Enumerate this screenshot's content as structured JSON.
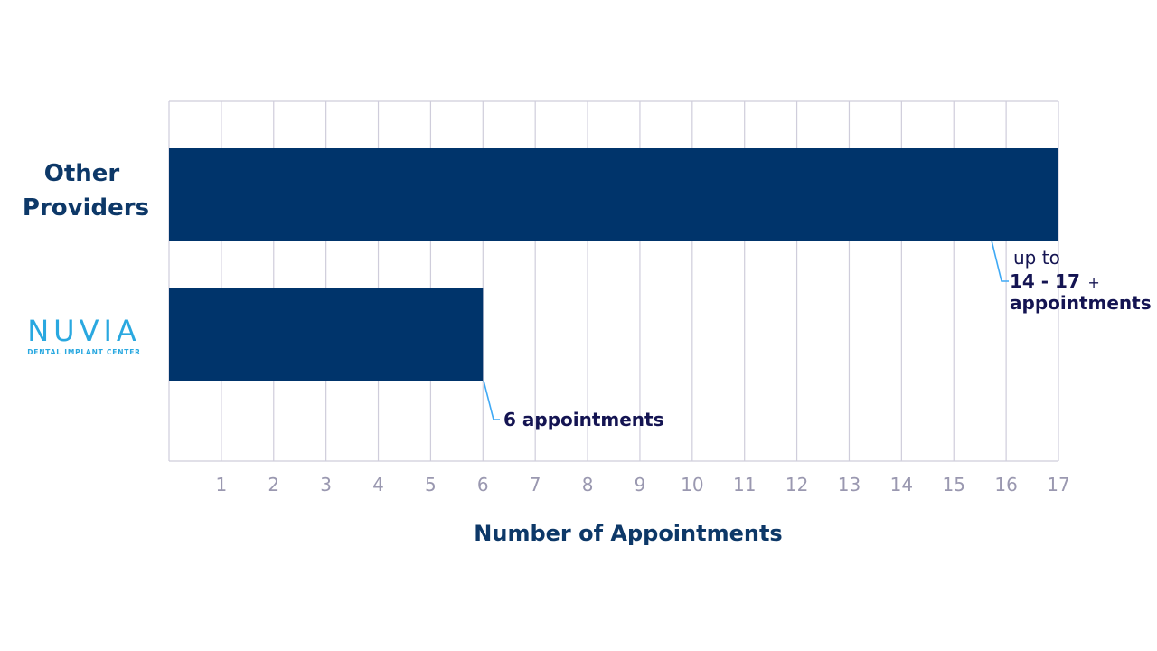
{
  "colors": {
    "bar": "#00346B",
    "grid": "#CFCDDB",
    "tick_text": "#9A98B0",
    "category_text": "#0D3868",
    "annotation_text": "#141452",
    "leader_line": "#3FA9F5",
    "logo": "#29A8E0"
  },
  "logo": {
    "name": "NUVIA",
    "tagline": "DENTAL IMPLANT CENTER"
  },
  "annotations": {
    "other": {
      "line1": "up to",
      "range": "14 - 17",
      "plus": "+",
      "line3": "appointments"
    },
    "nuvia": {
      "text": "6 appointments"
    }
  },
  "chart_data": {
    "type": "bar",
    "orientation": "horizontal",
    "categories": [
      "Other Providers",
      "NUVIA Dental Implant Center"
    ],
    "values": [
      17,
      6
    ],
    "xlabel": "Number of Appointments",
    "ylabel": "",
    "xlim": [
      0,
      17
    ],
    "xticks": [
      1,
      2,
      3,
      4,
      5,
      6,
      7,
      8,
      9,
      10,
      11,
      12,
      13,
      14,
      15,
      16,
      17
    ],
    "grid": true,
    "legend": "none"
  }
}
